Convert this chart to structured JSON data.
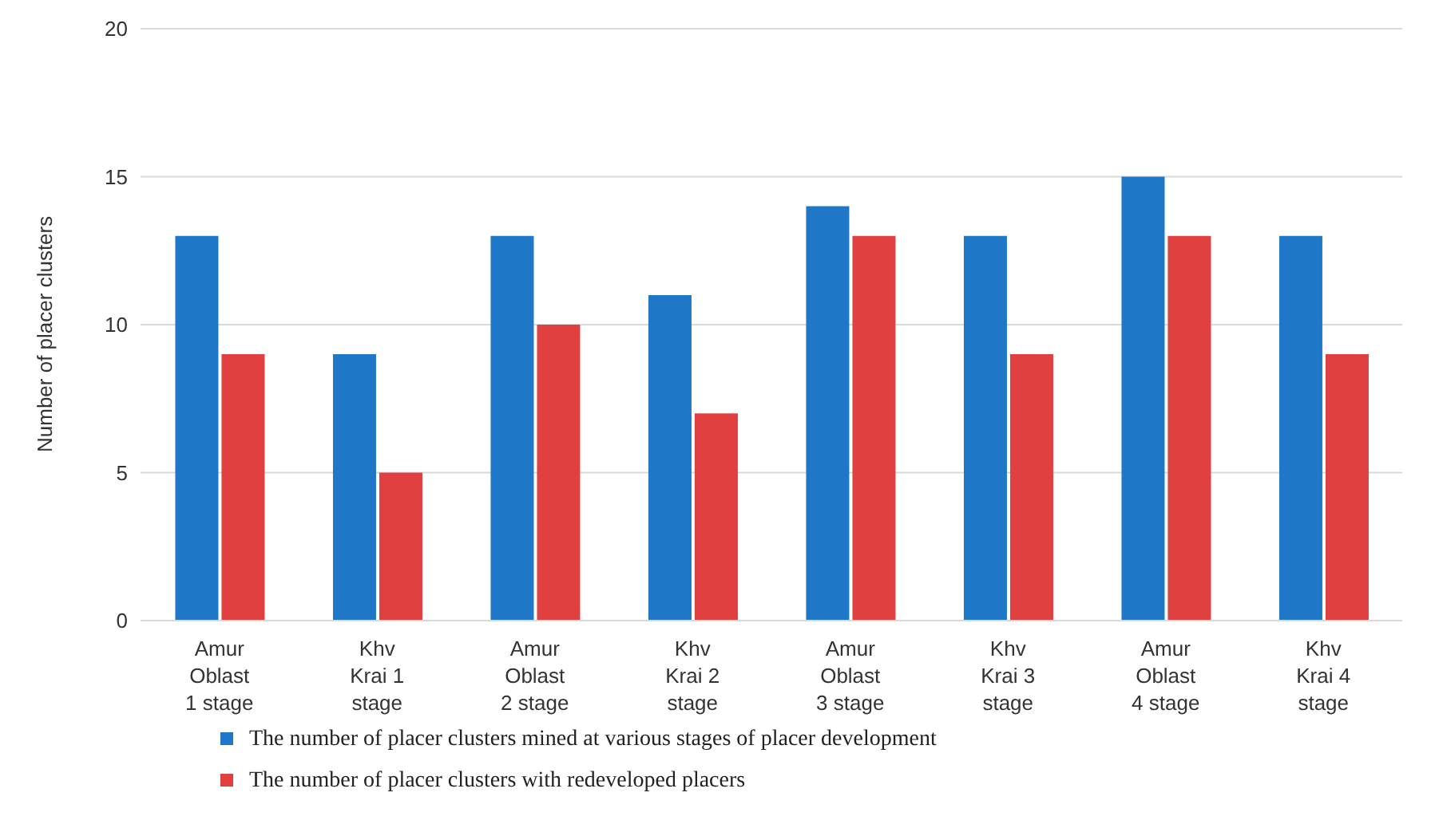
{
  "chart_data": {
    "type": "bar",
    "ylabel": "Number  of placer clusters",
    "categories": [
      "Amur Oblast 1 stage",
      "Khv Krai 1 stage",
      "Amur Oblast 2 stage",
      "Khv Krai 2 stage",
      "Amur Oblast 3 stage",
      "Khv Krai 3 stage",
      "Amur Oblast 4 stage",
      "Khv Krai 4 stage"
    ],
    "series": [
      {
        "name": "The number of placer clusters mined at various stages of placer development",
        "color": "#1f77c8",
        "values": [
          13,
          9,
          13,
          11,
          14,
          13,
          15,
          13
        ]
      },
      {
        "name": "The number of placer clusters with redeveloped placers",
        "color": "#e04040",
        "values": [
          9,
          5,
          10,
          7,
          13,
          9,
          13,
          9
        ]
      }
    ],
    "ylim": [
      0,
      20
    ],
    "yticks": [
      0,
      5,
      10,
      15,
      20
    ],
    "grid": "y",
    "legend": "bottom"
  }
}
